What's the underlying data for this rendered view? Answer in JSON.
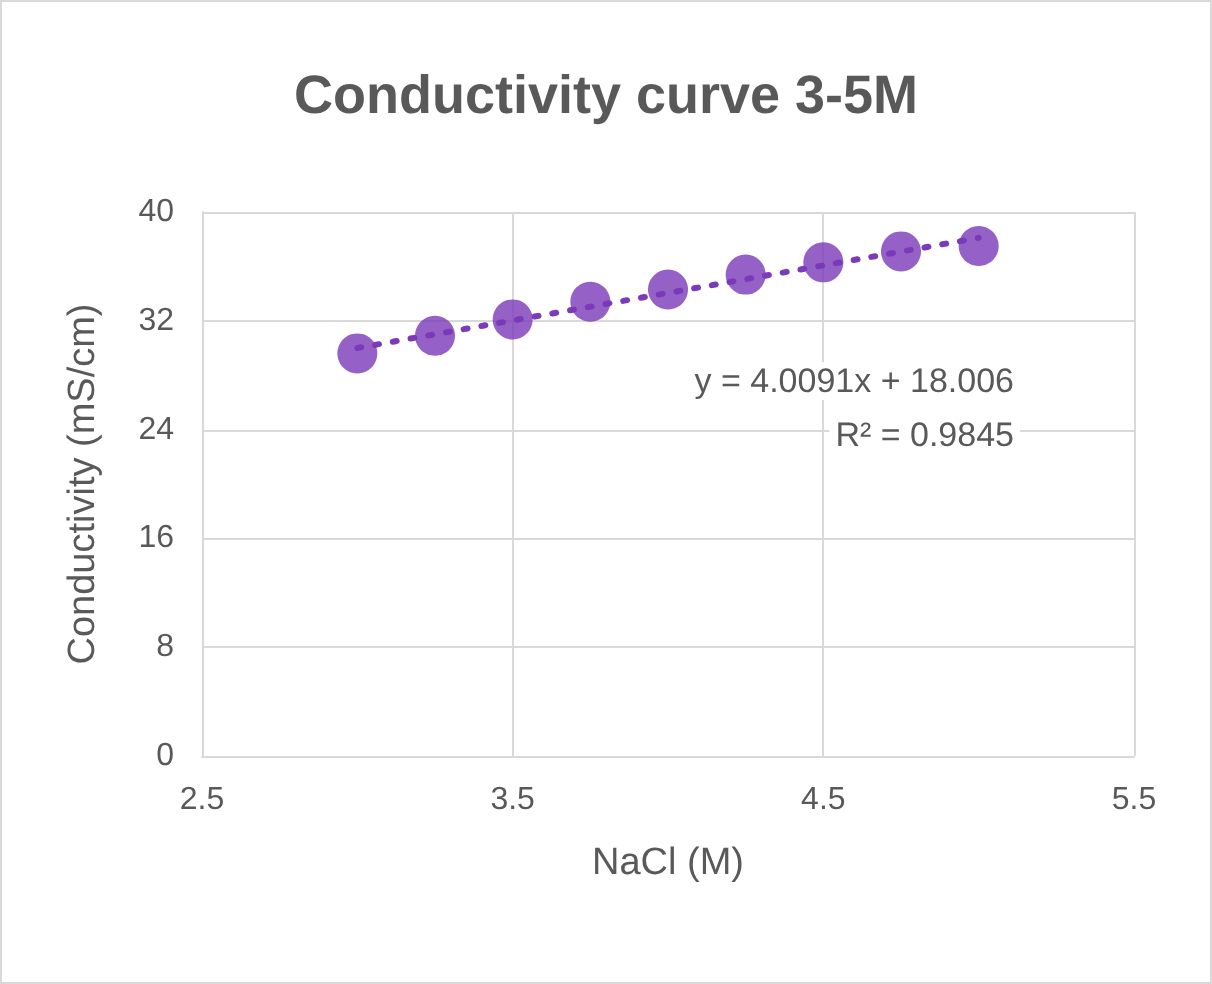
{
  "chart_data": {
    "type": "scatter",
    "title": "Conductivity curve 3-5M",
    "xlabel": "NaCl (M)",
    "ylabel": "Conductivity (mS/cm)",
    "x": [
      3,
      3.25,
      3.5,
      3.75,
      4,
      4.25,
      4.5,
      4.75,
      5
    ],
    "series": [
      {
        "color": "#7b3ab8",
        "marker": "circle",
        "values": [
          29.6,
          30.9,
          32.1,
          33.4,
          34.3,
          35.4,
          36.3,
          37.1,
          37.5
        ]
      },
      {
        "type": "line",
        "color": "#7b3ab8",
        "line_style": "dotted",
        "marker": "none",
        "x": [
          3,
          5
        ],
        "values": [
          30.0,
          38.1
        ]
      }
    ],
    "annotations": [
      "y = 4.0091x + 18.006",
      "R² = 0.9845"
    ],
    "xlim": [
      2.5,
      5.5
    ],
    "xticks": [
      2.5,
      3.5,
      4.5,
      5.5
    ],
    "ylim": [
      0,
      40
    ],
    "yticks": [
      0,
      8,
      16,
      24,
      32,
      40
    ],
    "grid": true
  }
}
